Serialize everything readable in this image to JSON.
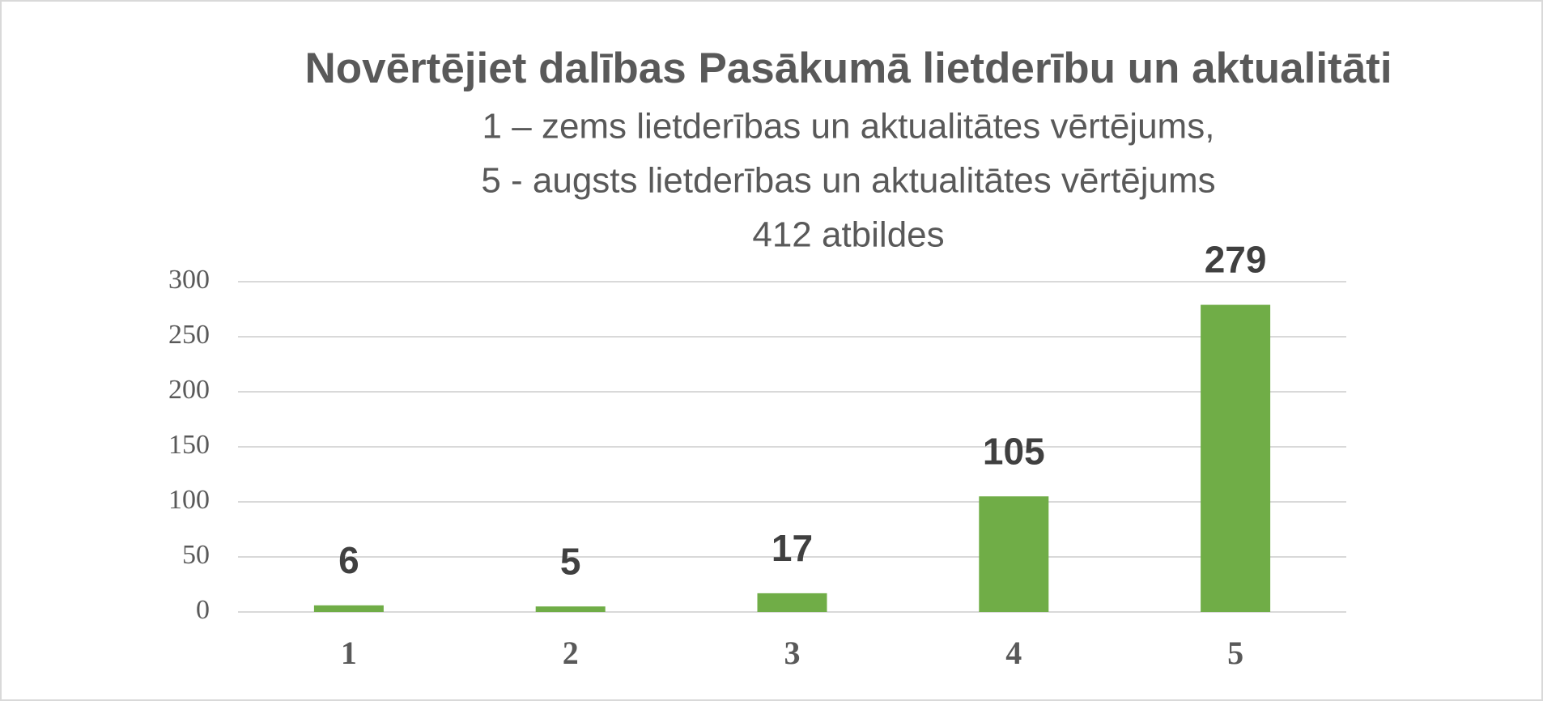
{
  "chart_data": {
    "type": "bar",
    "title": "Novērtējiet dalības Pasākumā lietderību un aktualitāti",
    "subtitle": [
      "1 – zems lietderības un aktualitātes vērtējums,",
      "5 - augsts lietderības un aktualitātes vērtējums",
      "412 atbildes"
    ],
    "categories": [
      "1",
      "2",
      "3",
      "4",
      "5"
    ],
    "values": [
      6,
      5,
      17,
      105,
      279
    ],
    "color": "#70ad47",
    "ylim": [
      0,
      300
    ],
    "yticks": [
      0,
      50,
      100,
      150,
      200,
      250,
      300
    ],
    "grid": true
  }
}
